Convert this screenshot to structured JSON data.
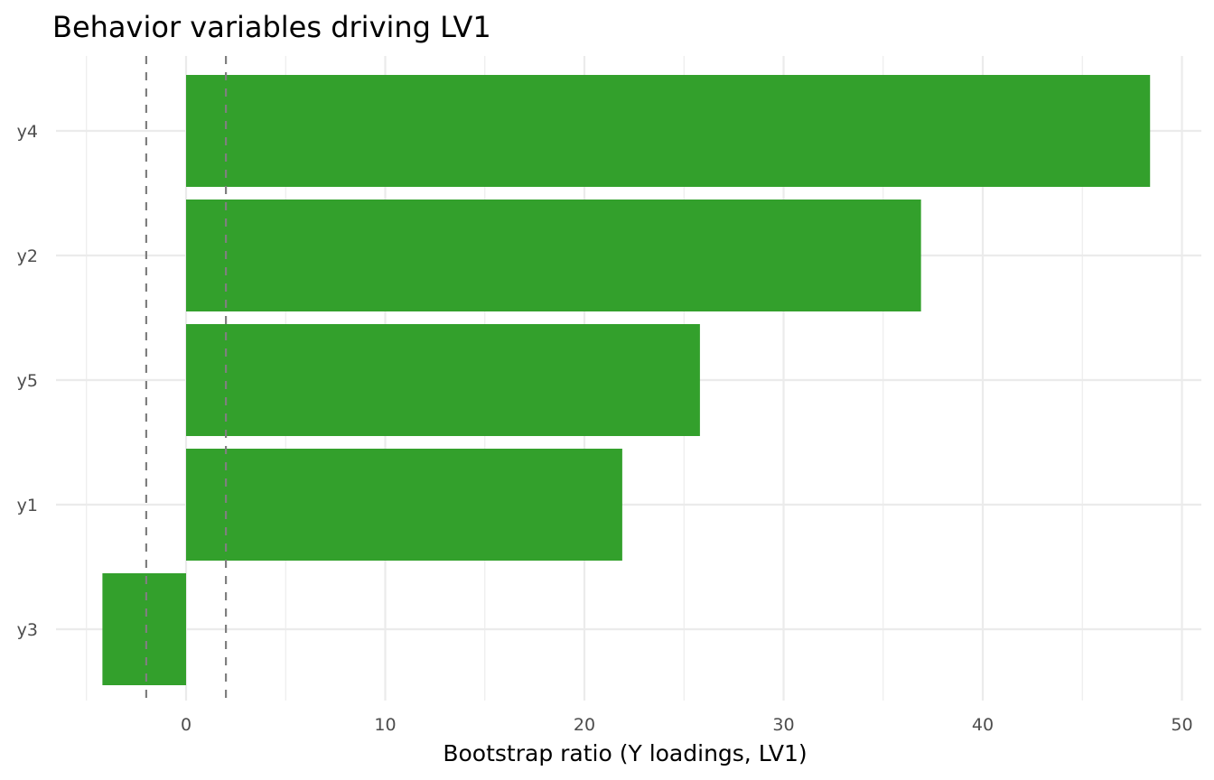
{
  "chart_data": {
    "type": "bar",
    "orientation": "horizontal",
    "title": "Behavior variables driving LV1",
    "xlabel": "Bootstrap ratio (Y loadings, LV1)",
    "ylabel": "",
    "categories": [
      "y4",
      "y2",
      "y5",
      "y1",
      "y3"
    ],
    "values": [
      48.4,
      36.9,
      25.8,
      21.9,
      -4.2
    ],
    "xlim": [
      -5,
      51
    ],
    "xticks": [
      0,
      10,
      20,
      30,
      40,
      50
    ],
    "xtick_labels": [
      "0",
      "10",
      "20",
      "30",
      "40",
      "50"
    ],
    "reference_lines": [
      -2,
      2
    ],
    "bar_color": "#33a02c",
    "reference_line_color": "#7f7f7f",
    "grid": true,
    "legend": "none"
  }
}
